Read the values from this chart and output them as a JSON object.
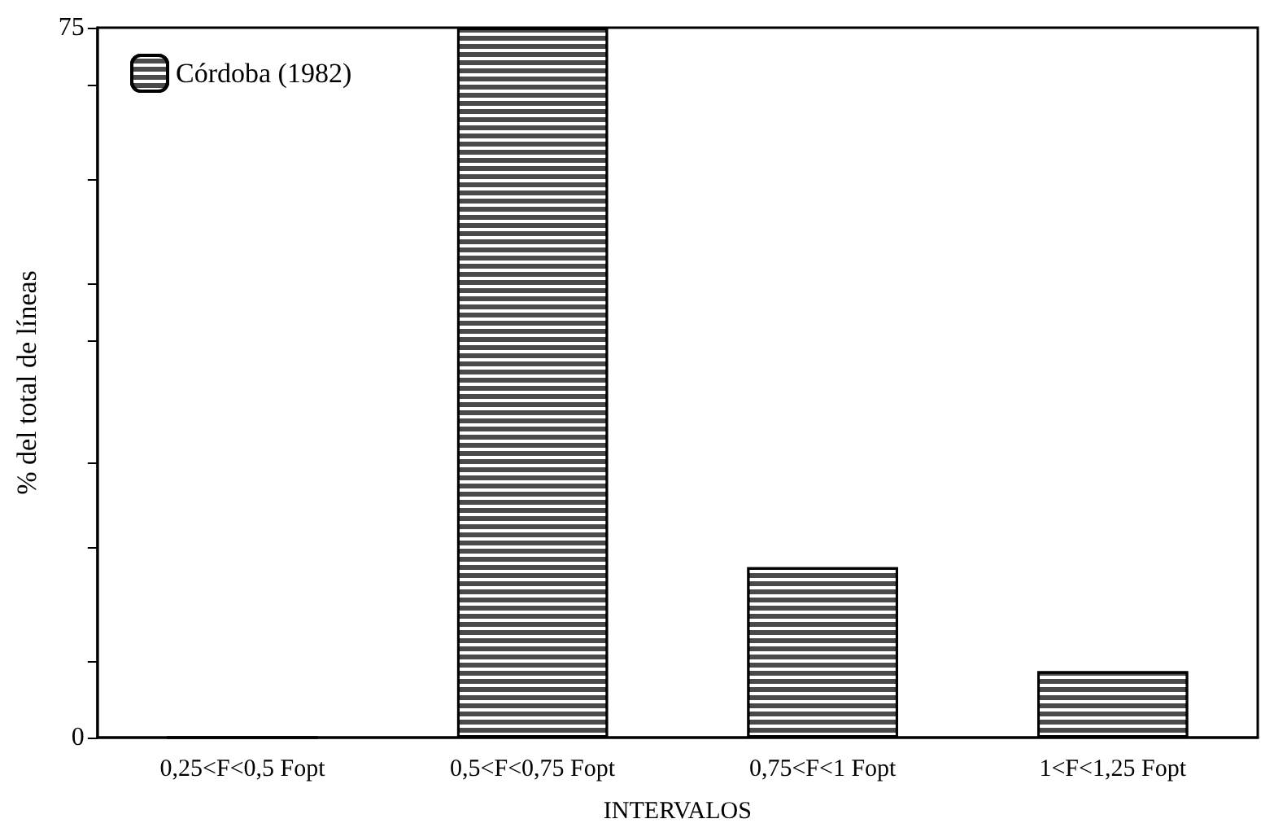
{
  "chart_data": {
    "type": "bar",
    "xlabel": "INTERVALOS",
    "ylabel": "% del total de líneas",
    "categories": [
      "0,25<F<0,5 Fopt",
      "0,5<F<0,75 Fopt",
      "0,75<F<1 Fopt",
      "1<F<1,25 Fopt"
    ],
    "series": [
      {
        "name": "Córdoba (1982)",
        "color": "#4a4a4a",
        "values": [
          0,
          75,
          18,
          7
        ]
      }
    ],
    "ylim": [
      0,
      75
    ],
    "yticks": [
      0,
      {
        "value": 8,
        "label": null
      },
      {
        "value": 20,
        "label": null
      },
      {
        "value": 29,
        "label": null
      },
      {
        "value": 42,
        "label": null
      },
      {
        "value": 48,
        "label": null
      },
      {
        "value": 59,
        "label": null
      },
      {
        "value": 69,
        "label": null
      },
      75
    ],
    "legend": "top left",
    "grid": false
  }
}
